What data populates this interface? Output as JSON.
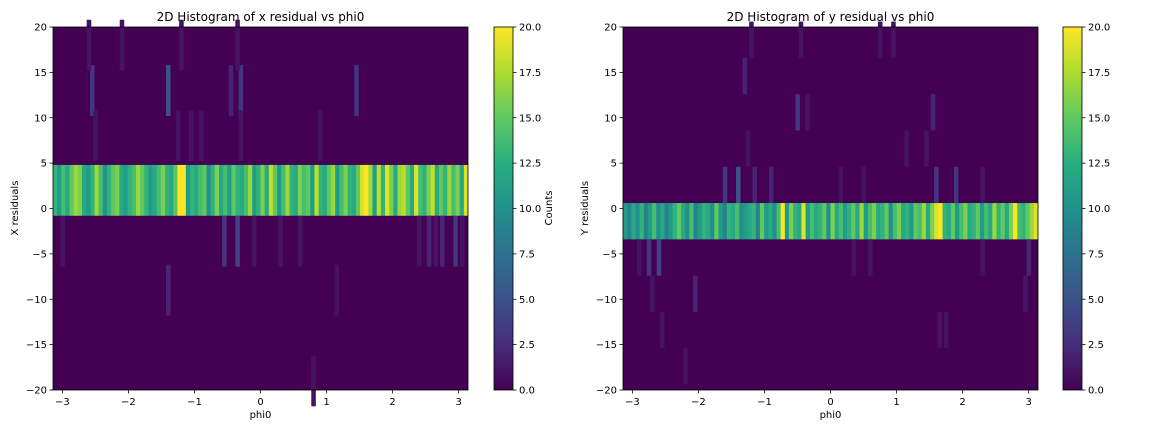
{
  "chart_data": [
    {
      "type": "heatmap",
      "title": "2D Histogram of x residual vs phi0",
      "xlabel": "phi0",
      "ylabel": "X residuals",
      "xlim": [
        -3.14159,
        3.14159
      ],
      "ylim": [
        -20,
        20
      ],
      "x_ticks": [
        "−3",
        "−2",
        "−1",
        "0",
        "1",
        "2",
        "3"
      ],
      "x_tick_values": [
        -3,
        -2,
        -1,
        0,
        1,
        2,
        3
      ],
      "y_ticks": [
        "−20",
        "−15",
        "−10",
        "−5",
        "0",
        "5",
        "10",
        "15",
        "20"
      ],
      "y_tick_values": [
        -20,
        -15,
        -10,
        -5,
        0,
        5,
        10,
        15,
        20
      ],
      "colorbar": {
        "label": "Counts",
        "ticks": [
          "0.0",
          "2.5",
          "5.0",
          "7.5",
          "10.0",
          "12.5",
          "15.0",
          "17.5",
          "20.0"
        ],
        "tick_values": [
          0,
          2.5,
          5,
          7.5,
          10,
          12.5,
          15,
          17.5,
          20
        ],
        "vmin": 0,
        "vmax": 20,
        "colormap": "viridis"
      },
      "bins": 100,
      "y_bin_width": 5.6,
      "main_band": {
        "y_range": [
          -0.8,
          4.8
        ],
        "counts_source": "row of 100 bin counts, left to right",
        "counts": [
          13,
          11,
          14,
          12,
          15,
          17,
          16,
          12,
          11,
          13,
          17,
          14,
          10,
          13,
          15,
          16,
          12,
          11,
          13,
          14,
          17,
          15,
          13,
          11,
          12,
          14,
          16,
          13,
          12,
          15,
          20,
          20,
          11,
          13,
          12,
          14,
          15,
          10,
          13,
          16,
          12,
          14,
          11,
          15,
          13,
          12,
          14,
          17,
          11,
          13,
          16,
          12,
          18,
          15,
          11,
          14,
          17,
          13,
          12,
          16,
          14,
          15,
          11,
          18,
          13,
          12,
          15,
          17,
          11,
          14,
          16,
          13,
          12,
          15,
          19,
          20,
          17,
          11,
          18,
          13,
          19,
          16,
          12,
          17,
          18,
          15,
          12,
          19,
          14,
          13,
          16,
          18,
          12,
          15,
          13,
          17,
          14,
          16,
          12,
          19
        ]
      },
      "sparse_cells": [
        {
          "x": -3.0,
          "y": -3.6,
          "count": 1
        },
        {
          "x": -2.55,
          "y": 13.0,
          "count": 3
        },
        {
          "x": -2.5,
          "y": 8.0,
          "count": 1
        },
        {
          "x": -2.6,
          "y": 18.0,
          "count": 1
        },
        {
          "x": -2.1,
          "y": 18.0,
          "count": 1
        },
        {
          "x": -1.4,
          "y": 13.0,
          "count": 5
        },
        {
          "x": -1.4,
          "y": -9.0,
          "count": 2
        },
        {
          "x": -1.25,
          "y": 8.0,
          "count": 1
        },
        {
          "x": -1.2,
          "y": 18.0,
          "count": 1
        },
        {
          "x": -1.05,
          "y": 8.0,
          "count": 1
        },
        {
          "x": -0.9,
          "y": 8.0,
          "count": 1
        },
        {
          "x": -0.55,
          "y": -3.6,
          "count": 3
        },
        {
          "x": -0.45,
          "y": 13.0,
          "count": 2
        },
        {
          "x": -0.35,
          "y": -3.6,
          "count": 4
        },
        {
          "x": -0.3,
          "y": 13.0,
          "count": 3
        },
        {
          "x": -0.35,
          "y": 18.0,
          "count": 1
        },
        {
          "x": -0.3,
          "y": 8.0,
          "count": 1
        },
        {
          "x": -0.1,
          "y": -3.6,
          "count": 1
        },
        {
          "x": 0.3,
          "y": -3.6,
          "count": 1
        },
        {
          "x": 0.6,
          "y": -3.6,
          "count": 1
        },
        {
          "x": 0.9,
          "y": 8.0,
          "count": 1
        },
        {
          "x": 0.8,
          "y": -19.0,
          "count": 1
        },
        {
          "x": 1.15,
          "y": -9.0,
          "count": 1
        },
        {
          "x": 1.45,
          "y": 13.0,
          "count": 3
        },
        {
          "x": 2.4,
          "y": -3.6,
          "count": 1
        },
        {
          "x": 2.55,
          "y": -3.6,
          "count": 2
        },
        {
          "x": 2.65,
          "y": -3.6,
          "count": 1
        },
        {
          "x": 2.75,
          "y": -3.6,
          "count": 2
        },
        {
          "x": 2.95,
          "y": -3.6,
          "count": 3
        },
        {
          "x": 3.05,
          "y": -3.6,
          "count": 1
        }
      ]
    },
    {
      "type": "heatmap",
      "title": "2D Histogram of y residual vs phi0",
      "xlabel": "phi0",
      "ylabel": "Y residuals",
      "xlim": [
        -3.14159,
        3.14159
      ],
      "ylim": [
        -20,
        20
      ],
      "x_ticks": [
        "−3",
        "−2",
        "−1",
        "0",
        "1",
        "2",
        "3"
      ],
      "x_tick_values": [
        -3,
        -2,
        -1,
        0,
        1,
        2,
        3
      ],
      "y_ticks": [
        "−20",
        "−15",
        "−10",
        "−5",
        "0",
        "5",
        "10",
        "15",
        "20"
      ],
      "y_tick_values": [
        -20,
        -15,
        -10,
        -5,
        0,
        5,
        10,
        15,
        20
      ],
      "colorbar": {
        "label": "",
        "ticks": [
          "0.0",
          "2.5",
          "5.0",
          "7.5",
          "10.0",
          "12.5",
          "15.0",
          "17.5",
          "20.0"
        ],
        "tick_values": [
          0,
          2.5,
          5,
          7.5,
          10,
          12.5,
          15,
          17.5,
          20
        ],
        "vmin": 0,
        "vmax": 20,
        "colormap": "viridis"
      },
      "bins": 100,
      "y_bin_width": 4.0,
      "main_band": {
        "y_range": [
          -3.4,
          0.6
        ],
        "counts": [
          11,
          9,
          12,
          10,
          13,
          9,
          11,
          14,
          10,
          12,
          9,
          11,
          13,
          15,
          12,
          10,
          14,
          9,
          11,
          13,
          12,
          10,
          15,
          11,
          9,
          13,
          12,
          14,
          10,
          11,
          12,
          13,
          9,
          15,
          11,
          12,
          10,
          14,
          20,
          11,
          16,
          13,
          12,
          19,
          11,
          14,
          12,
          13,
          15,
          10,
          16,
          12,
          14,
          11,
          13,
          15,
          12,
          17,
          11,
          14,
          16,
          12,
          13,
          15,
          10,
          14,
          16,
          12,
          13,
          11,
          15,
          14,
          17,
          12,
          16,
          19,
          20,
          13,
          12,
          15,
          11,
          14,
          16,
          12,
          13,
          15,
          11,
          14,
          12,
          17,
          13,
          15,
          12,
          16,
          20,
          14,
          13,
          15,
          17,
          19
        ]
      },
      "sparse_cells": [
        {
          "x": -2.9,
          "y": -5.4,
          "count": 1
        },
        {
          "x": -2.75,
          "y": -5.4,
          "count": 3
        },
        {
          "x": -2.7,
          "y": -9.4,
          "count": 1
        },
        {
          "x": -2.6,
          "y": -5.4,
          "count": 4
        },
        {
          "x": -2.55,
          "y": -13.4,
          "count": 1
        },
        {
          "x": -2.2,
          "y": -17.4,
          "count": 1
        },
        {
          "x": -2.05,
          "y": -9.4,
          "count": 2
        },
        {
          "x": -1.6,
          "y": 2.6,
          "count": 3
        },
        {
          "x": -1.4,
          "y": 2.6,
          "count": 5
        },
        {
          "x": -1.3,
          "y": 14.6,
          "count": 2
        },
        {
          "x": -1.25,
          "y": 6.6,
          "count": 1
        },
        {
          "x": -1.2,
          "y": 18.6,
          "count": 1
        },
        {
          "x": -1.15,
          "y": 2.6,
          "count": 2
        },
        {
          "x": -0.9,
          "y": 2.6,
          "count": 2
        },
        {
          "x": -0.5,
          "y": 10.6,
          "count": 3
        },
        {
          "x": -0.45,
          "y": 18.6,
          "count": 1
        },
        {
          "x": -0.35,
          "y": 10.6,
          "count": 1
        },
        {
          "x": 0.15,
          "y": 2.6,
          "count": 1
        },
        {
          "x": 0.35,
          "y": -5.4,
          "count": 1
        },
        {
          "x": 0.5,
          "y": 2.6,
          "count": 1
        },
        {
          "x": 0.6,
          "y": -5.4,
          "count": 1
        },
        {
          "x": 0.75,
          "y": 18.6,
          "count": 1
        },
        {
          "x": 0.95,
          "y": 18.6,
          "count": 1
        },
        {
          "x": 1.15,
          "y": 6.6,
          "count": 1
        },
        {
          "x": 1.45,
          "y": 6.6,
          "count": 1
        },
        {
          "x": 1.55,
          "y": 10.6,
          "count": 2
        },
        {
          "x": 1.6,
          "y": 2.6,
          "count": 3
        },
        {
          "x": 1.65,
          "y": -13.4,
          "count": 1
        },
        {
          "x": 1.75,
          "y": -13.4,
          "count": 1
        },
        {
          "x": 1.9,
          "y": 2.6,
          "count": 3
        },
        {
          "x": 2.3,
          "y": 2.6,
          "count": 1
        },
        {
          "x": 2.3,
          "y": -5.4,
          "count": 1
        },
        {
          "x": 2.95,
          "y": -9.4,
          "count": 1
        },
        {
          "x": 3.0,
          "y": -5.4,
          "count": 2
        }
      ]
    }
  ]
}
